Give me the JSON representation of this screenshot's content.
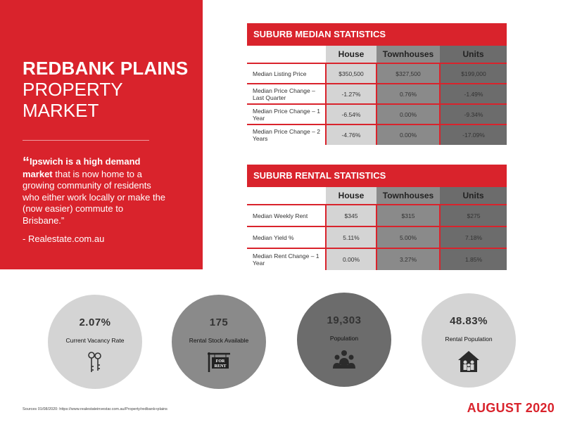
{
  "left_panel": {
    "title_line1": "REDBANK PLAINS",
    "title_line2": "PROPERTY",
    "title_line3": "MARKET",
    "quote_open": "“",
    "quote_bold": "Ipswich is a high demand market",
    "quote_rest": " that is now home to a growing community of residents who either work locally or make the (now easier) commute to Brisbane.”",
    "source": "- Realestate.com.au"
  },
  "median": {
    "header": "SUBURB MEDIAN STATISTICS",
    "columns": [
      "House",
      "Townhouses",
      "Units"
    ],
    "rows": [
      {
        "label": "Median Listing Price",
        "house": "$350,500",
        "townhouses": "$327,500",
        "units": "$199,000"
      },
      {
        "label": "Median Price Change – Last Quarter",
        "house": "-1.27%",
        "townhouses": "0.76%",
        "units": "-1.49%"
      },
      {
        "label": "Median Price Change – 1 Year",
        "house": "-6.54%",
        "townhouses": "0.00%",
        "units": "-9.34%"
      },
      {
        "label": "Median Price Change – 2 Years",
        "house": "-4.76%",
        "townhouses": "0.00%",
        "units": "-17.09%"
      }
    ]
  },
  "rental": {
    "header": "SUBURB RENTAL STATISTICS",
    "columns": [
      "House",
      "Townhouses",
      "Units"
    ],
    "rows": [
      {
        "label": "Median Weekly Rent",
        "house": "$345",
        "townhouses": "$315",
        "units": "$275"
      },
      {
        "label": "Median Yield %",
        "house": "5.11%",
        "townhouses": "5.00%",
        "units": "7.18%"
      },
      {
        "label": "Median Rent Change – 1 Year",
        "house": "0.00%",
        "townhouses": "3.27%",
        "units": "1.85%"
      }
    ]
  },
  "stats": [
    {
      "value": "2.07%",
      "label": "Current Vacancy Rate",
      "icon": "keys-icon"
    },
    {
      "value": "175",
      "label": "Rental Stock Available",
      "icon": "for-rent-sign-icon",
      "sign_text_1": "FOR",
      "sign_text_2": "RENT"
    },
    {
      "value": "19,303",
      "label": "Population",
      "icon": "people-icon"
    },
    {
      "value": "48.83%",
      "label": "Rental Population",
      "icon": "family-house-icon"
    }
  ],
  "footer": {
    "sources": "Sources 01/08/2020: https://www.realestateinvestar.com.au/Property/redbank+plains",
    "month": "AUGUST 2020"
  },
  "colors": {
    "accent": "#d9232c",
    "circle_light": "#d4d4d4",
    "circle_mid": "#8a8a8a",
    "circle_dark": "#6c6c6c"
  }
}
